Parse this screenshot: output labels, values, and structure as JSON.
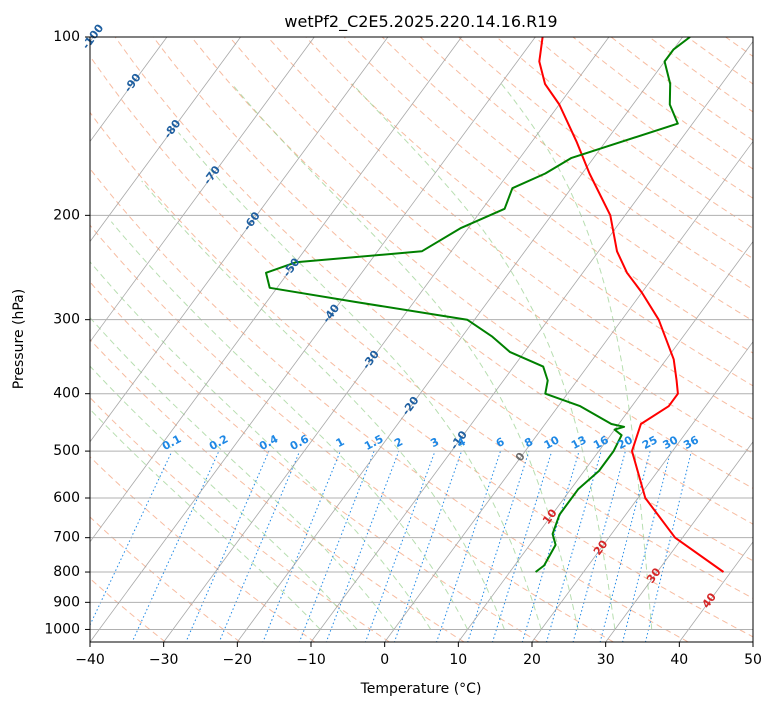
{
  "chart_data": {
    "type": "line",
    "title": "wetPf2_C2E5.2025.220.14.16.R19",
    "xlabel": "Temperature (°C)",
    "ylabel": "Pressure (hPa)",
    "xlim": [
      -40,
      50
    ],
    "ylim": [
      1050,
      100
    ],
    "y_scale": "log",
    "grid": true,
    "x_ticks": [
      -40,
      -30,
      -20,
      -10,
      0,
      10,
      20,
      30,
      40,
      50
    ],
    "y_ticks": [
      100,
      200,
      300,
      400,
      500,
      600,
      700,
      800,
      900,
      1000
    ],
    "skew_isotherms": true,
    "series": [
      {
        "color": "#ff0000",
        "points": [
          [
            800,
            39
          ],
          [
            700,
            29
          ],
          [
            600,
            21
          ],
          [
            500,
            14.5
          ],
          [
            450,
            13
          ],
          [
            420,
            15
          ],
          [
            400,
            15
          ],
          [
            380,
            13.5
          ],
          [
            350,
            11
          ],
          [
            300,
            5
          ],
          [
            270,
            0
          ],
          [
            250,
            -4
          ],
          [
            230,
            -7.5
          ],
          [
            200,
            -12
          ],
          [
            170,
            -19
          ],
          [
            150,
            -24
          ],
          [
            130,
            -30
          ],
          [
            120,
            -34
          ],
          [
            110,
            -37
          ],
          [
            100,
            -39
          ]
        ]
      },
      {
        "color": "#008000",
        "points": [
          [
            800,
            13.5
          ],
          [
            780,
            14
          ],
          [
            720,
            13.5
          ],
          [
            690,
            12
          ],
          [
            640,
            11
          ],
          [
            580,
            11
          ],
          [
            540,
            12
          ],
          [
            500,
            12
          ],
          [
            470,
            11.5
          ],
          [
            460,
            10
          ],
          [
            455,
            11
          ],
          [
            450,
            9
          ],
          [
            420,
            3
          ],
          [
            400,
            -3
          ],
          [
            380,
            -4
          ],
          [
            360,
            -6
          ],
          [
            340,
            -12
          ],
          [
            320,
            -16
          ],
          [
            300,
            -21
          ],
          [
            280,
            -38
          ],
          [
            265,
            -51
          ],
          [
            250,
            -53
          ],
          [
            240,
            -50
          ],
          [
            230,
            -34
          ],
          [
            210,
            -31
          ],
          [
            195,
            -27
          ],
          [
            180,
            -28
          ],
          [
            170,
            -25
          ],
          [
            160,
            -23
          ],
          [
            140,
            -12
          ],
          [
            130,
            -15
          ],
          [
            120,
            -17
          ],
          [
            110,
            -20
          ],
          [
            105,
            -20
          ],
          [
            100,
            -19
          ]
        ]
      }
    ],
    "annotations": {
      "isotherm_labels": [
        "-100",
        "-90",
        "-80",
        "-70",
        "-60",
        "-50",
        "-40",
        "-30",
        "-20",
        "-10",
        "0",
        "10",
        "20",
        "30",
        "40"
      ],
      "mixing_ratio_labels": [
        "0.1",
        "0.2",
        "0.4",
        "0.6",
        "1",
        "1.5",
        "2",
        "3",
        "4",
        "6",
        "8",
        "10",
        "13",
        "16",
        "20",
        "25",
        "30",
        "36"
      ]
    },
    "colors": {
      "dry_adiabat": "#f4a582",
      "moist_adiabat": "#98d08e",
      "mixing_ratio": "#1e88e5",
      "isotherm": "#9e9e9e",
      "isotherm_label": "#1f5fa0",
      "temp_label": "#d62728"
    }
  }
}
